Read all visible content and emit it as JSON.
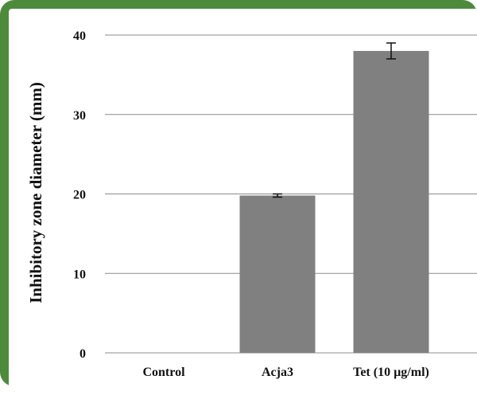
{
  "chart_data": {
    "type": "bar",
    "title": "",
    "xlabel": "",
    "ylabel": "Inhibitory zone diameter  (mm)",
    "categories": [
      "Control",
      "Acja3",
      "Tet (10 µg/ml)"
    ],
    "values": [
      0,
      19.8,
      38.0
    ],
    "errors": [
      0,
      0.2,
      1.0
    ],
    "ylim": [
      0,
      40
    ],
    "yticks": [
      0,
      10,
      20,
      30,
      40
    ],
    "grid": true,
    "bar_color": "#808080",
    "gridline_color": "#8c8c8c"
  },
  "frame": {
    "border_color": "#4d8a3c"
  }
}
